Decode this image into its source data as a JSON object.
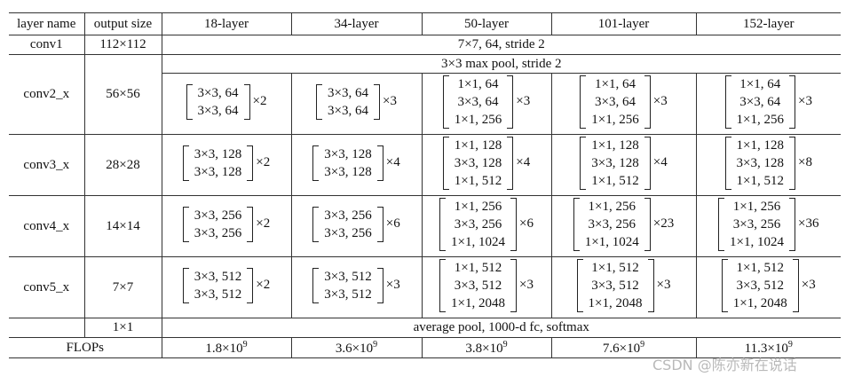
{
  "header": [
    "layer name",
    "output size",
    "18-layer",
    "34-layer",
    "50-layer",
    "101-layer",
    "152-layer"
  ],
  "conv1": {
    "name": "conv1",
    "size": "112×112",
    "spec": "7×7, 64, stride 2"
  },
  "pool": "3×3 max pool, stride 2",
  "stages": [
    {
      "name": "conv2_x",
      "size": "56×56",
      "blocks": [
        {
          "lines": [
            "3×3, 64",
            "3×3, 64"
          ],
          "mult": "×2"
        },
        {
          "lines": [
            "3×3, 64",
            "3×3, 64"
          ],
          "mult": "×3"
        },
        {
          "lines": [
            "1×1, 64",
            "3×3, 64",
            "1×1, 256"
          ],
          "mult": "×3"
        },
        {
          "lines": [
            "1×1, 64",
            "3×3, 64",
            "1×1, 256"
          ],
          "mult": "×3"
        },
        {
          "lines": [
            "1×1, 64",
            "3×3, 64",
            "1×1, 256"
          ],
          "mult": "×3"
        }
      ]
    },
    {
      "name": "conv3_x",
      "size": "28×28",
      "blocks": [
        {
          "lines": [
            "3×3, 128",
            "3×3, 128"
          ],
          "mult": "×2"
        },
        {
          "lines": [
            "3×3, 128",
            "3×3, 128"
          ],
          "mult": "×4"
        },
        {
          "lines": [
            "1×1, 128",
            "3×3, 128",
            "1×1, 512"
          ],
          "mult": "×4"
        },
        {
          "lines": [
            "1×1, 128",
            "3×3, 128",
            "1×1, 512"
          ],
          "mult": "×4"
        },
        {
          "lines": [
            "1×1, 128",
            "3×3, 128",
            "1×1, 512"
          ],
          "mult": "×8"
        }
      ]
    },
    {
      "name": "conv4_x",
      "size": "14×14",
      "blocks": [
        {
          "lines": [
            "3×3, 256",
            "3×3, 256"
          ],
          "mult": "×2"
        },
        {
          "lines": [
            "3×3, 256",
            "3×3, 256"
          ],
          "mult": "×6"
        },
        {
          "lines": [
            "1×1, 256",
            "3×3, 256",
            "1×1, 1024"
          ],
          "mult": "×6"
        },
        {
          "lines": [
            "1×1, 256",
            "3×3, 256",
            "1×1, 1024"
          ],
          "mult": "×23"
        },
        {
          "lines": [
            "1×1, 256",
            "3×3, 256",
            "1×1, 1024"
          ],
          "mult": "×36"
        }
      ]
    },
    {
      "name": "conv5_x",
      "size": "7×7",
      "blocks": [
        {
          "lines": [
            "3×3, 512",
            "3×3, 512"
          ],
          "mult": "×2"
        },
        {
          "lines": [
            "3×3, 512",
            "3×3, 512"
          ],
          "mult": "×3"
        },
        {
          "lines": [
            "1×1, 512",
            "3×3, 512",
            "1×1, 2048"
          ],
          "mult": "×3"
        },
        {
          "lines": [
            "1×1, 512",
            "3×3, 512",
            "1×1, 2048"
          ],
          "mult": "×3"
        },
        {
          "lines": [
            "1×1, 512",
            "3×3, 512",
            "1×1, 2048"
          ],
          "mult": "×3"
        }
      ]
    }
  ],
  "final": {
    "size": "1×1",
    "spec": "average pool, 1000-d fc, softmax"
  },
  "flops": {
    "label": "FLOPs",
    "values": [
      {
        "base": "1.8×10",
        "exp": "9"
      },
      {
        "base": "3.6×10",
        "exp": "9"
      },
      {
        "base": "3.8×10",
        "exp": "9"
      },
      {
        "base": "7.6×10",
        "exp": "9"
      },
      {
        "base": "11.3×10",
        "exp": "9"
      }
    ]
  },
  "watermark": "CSDN @陈亦新在说话"
}
